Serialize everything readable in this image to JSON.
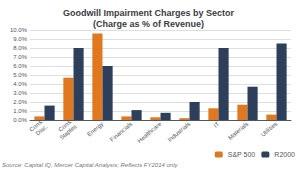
{
  "chart_data": {
    "type": "bar",
    "title": "Goodwill Impairment Charges by Sector\n(Charge as % of Revenue)",
    "categories": [
      "Cons.\nDisc.",
      "Cons.\nStaples",
      "Energy",
      "Financials",
      "Healthcare",
      "Industrials",
      "IT",
      "Materials",
      "Utilities"
    ],
    "series": [
      {
        "name": "S&P 500",
        "color": "#E07820",
        "values": [
          0.4,
          4.7,
          9.6,
          0.4,
          0.3,
          0.2,
          1.3,
          1.7,
          0.6
        ]
      },
      {
        "name": "R2000",
        "color": "#2D3F5A",
        "values": [
          1.6,
          8.0,
          6.0,
          1.1,
          0.8,
          2.0,
          8.0,
          3.7,
          8.5
        ]
      }
    ],
    "ylim": [
      0,
      10.0
    ],
    "yticks": [
      {
        "value": 0.0,
        "label": "0.0%"
      },
      {
        "value": 1.0,
        "label": "1.0%"
      },
      {
        "value": 2.0,
        "label": "2.0%"
      },
      {
        "value": 3.0,
        "label": "3.0%"
      },
      {
        "value": 4.0,
        "label": "4.0%"
      },
      {
        "value": 5.0,
        "label": "5.0%"
      },
      {
        "value": 6.0,
        "label": "6.0%"
      },
      {
        "value": 7.0,
        "label": "7.0%"
      },
      {
        "value": 8.0,
        "label": "8.0%"
      },
      {
        "value": 9.0,
        "label": "9.0%"
      },
      {
        "value": 10.0,
        "label": "10.0%"
      }
    ],
    "grid": true,
    "legend": "lower right",
    "annotations": [
      "Source: Capital IQ, Mercer Capital Analysis; Reflects FY2014 only"
    ]
  }
}
